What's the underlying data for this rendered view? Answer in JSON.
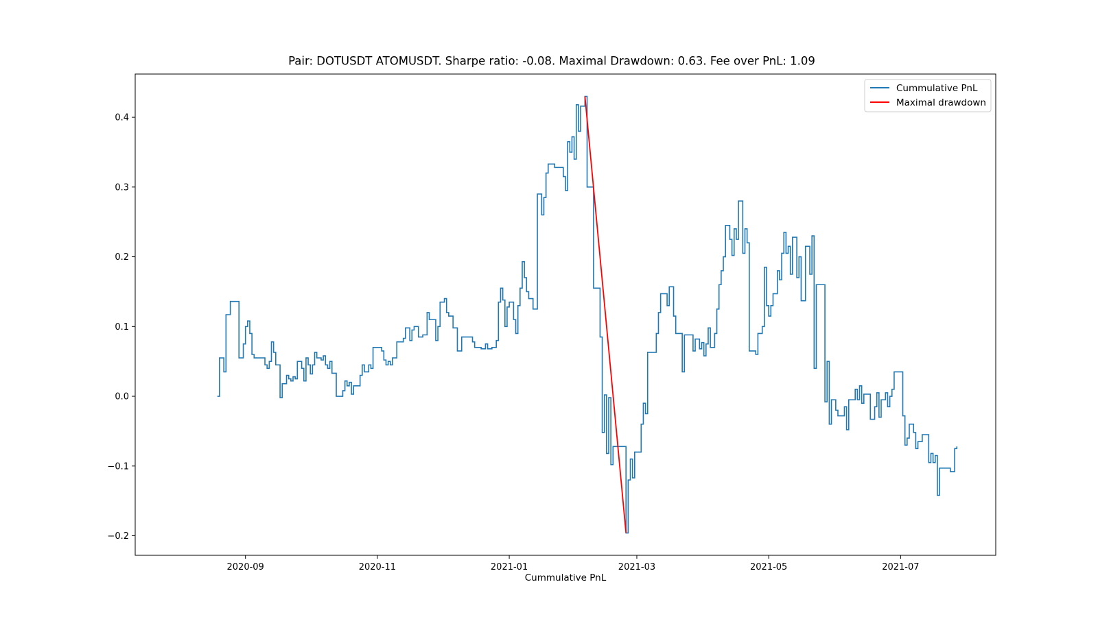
{
  "chart_data": {
    "type": "line",
    "title": "Pair: DOTUSDT ATOMUSDT. Sharpe ratio: -0.08. Maximal Drawdown: 0.63. Fee over PnL: 1.09",
    "xlabel": "Cummulative PnL",
    "ylabel": "",
    "xlim": [
      "2020-07-12",
      "2021-08-14"
    ],
    "ylim": [
      -0.228,
      0.462
    ],
    "x_ticks": [
      "2020-09",
      "2020-11",
      "2021-01",
      "2021-03",
      "2021-05",
      "2021-07"
    ],
    "y_ticks": [
      -0.2,
      -0.1,
      0.0,
      0.1,
      0.2,
      0.3,
      0.4
    ],
    "y_tick_labels": [
      "−0.2",
      "−0.1",
      "0.0",
      "0.1",
      "0.2",
      "0.3",
      "0.4"
    ],
    "grid": false,
    "legend_position": "top-right",
    "series": [
      {
        "name": "Cummulative PnL",
        "color": "#1f77b4",
        "step": true,
        "points": [
          [
            "2020-08-19",
            0.0
          ],
          [
            "2020-08-20",
            0.055
          ],
          [
            "2020-08-22",
            0.035
          ],
          [
            "2020-08-23",
            0.117
          ],
          [
            "2020-08-25",
            0.136
          ],
          [
            "2020-08-29",
            0.055
          ],
          [
            "2020-08-31",
            0.075
          ],
          [
            "2020-09-01",
            0.1
          ],
          [
            "2020-09-02",
            0.108
          ],
          [
            "2020-09-03",
            0.09
          ],
          [
            "2020-09-04",
            0.06
          ],
          [
            "2020-09-05",
            0.055
          ],
          [
            "2020-09-08",
            0.055
          ],
          [
            "2020-09-10",
            0.045
          ],
          [
            "2020-09-11",
            0.04
          ],
          [
            "2020-09-12",
            0.05
          ],
          [
            "2020-09-13",
            0.078
          ],
          [
            "2020-09-14",
            0.063
          ],
          [
            "2020-09-15",
            0.045
          ],
          [
            "2020-09-17",
            -0.002
          ],
          [
            "2020-09-18",
            0.018
          ],
          [
            "2020-09-20",
            0.03
          ],
          [
            "2020-09-21",
            0.025
          ],
          [
            "2020-09-22",
            0.022
          ],
          [
            "2020-09-23",
            0.028
          ],
          [
            "2020-09-24",
            0.025
          ],
          [
            "2020-09-25",
            0.05
          ],
          [
            "2020-09-27",
            0.04
          ],
          [
            "2020-09-28",
            0.022
          ],
          [
            "2020-09-29",
            0.055
          ],
          [
            "2020-09-30",
            0.045
          ],
          [
            "2020-10-01",
            0.032
          ],
          [
            "2020-10-02",
            0.045
          ],
          [
            "2020-10-03",
            0.063
          ],
          [
            "2020-10-04",
            0.055
          ],
          [
            "2020-10-06",
            0.052
          ],
          [
            "2020-10-07",
            0.058
          ],
          [
            "2020-10-08",
            0.045
          ],
          [
            "2020-10-09",
            0.04
          ],
          [
            "2020-10-10",
            0.05
          ],
          [
            "2020-10-11",
            0.033
          ],
          [
            "2020-10-13",
            0.0
          ],
          [
            "2020-10-16",
            0.008
          ],
          [
            "2020-10-17",
            0.022
          ],
          [
            "2020-10-18",
            0.015
          ],
          [
            "2020-10-19",
            0.02
          ],
          [
            "2020-10-20",
            0.003
          ],
          [
            "2020-10-21",
            0.015
          ],
          [
            "2020-10-24",
            0.03
          ],
          [
            "2020-10-25",
            0.045
          ],
          [
            "2020-10-26",
            0.035
          ],
          [
            "2020-10-27",
            0.035
          ],
          [
            "2020-10-28",
            0.045
          ],
          [
            "2020-10-29",
            0.04
          ],
          [
            "2020-10-30",
            0.07
          ],
          [
            "2020-11-03",
            0.065
          ],
          [
            "2020-11-04",
            0.052
          ],
          [
            "2020-11-05",
            0.045
          ],
          [
            "2020-11-06",
            0.05
          ],
          [
            "2020-11-07",
            0.045
          ],
          [
            "2020-11-08",
            0.055
          ],
          [
            "2020-11-10",
            0.078
          ],
          [
            "2020-11-13",
            0.083
          ],
          [
            "2020-11-14",
            0.098
          ],
          [
            "2020-11-16",
            0.08
          ],
          [
            "2020-11-17",
            0.095
          ],
          [
            "2020-11-18",
            0.1
          ],
          [
            "2020-11-20",
            0.085
          ],
          [
            "2020-11-22",
            0.088
          ],
          [
            "2020-11-24",
            0.12
          ],
          [
            "2020-11-25",
            0.11
          ],
          [
            "2020-11-28",
            0.08
          ],
          [
            "2020-11-29",
            0.1
          ],
          [
            "2020-11-30",
            0.135
          ],
          [
            "2020-12-02",
            0.14
          ],
          [
            "2020-12-03",
            0.12
          ],
          [
            "2020-12-04",
            0.115
          ],
          [
            "2020-12-06",
            0.098
          ],
          [
            "2020-12-08",
            0.065
          ],
          [
            "2020-12-10",
            0.085
          ],
          [
            "2020-12-15",
            0.078
          ],
          [
            "2020-12-16",
            0.07
          ],
          [
            "2020-12-19",
            0.068
          ],
          [
            "2020-12-21",
            0.075
          ],
          [
            "2020-12-22",
            0.068
          ],
          [
            "2020-12-24",
            0.07
          ],
          [
            "2020-12-26",
            0.08
          ],
          [
            "2020-12-27",
            0.135
          ],
          [
            "2020-12-28",
            0.155
          ],
          [
            "2020-12-29",
            0.138
          ],
          [
            "2020-12-30",
            0.1
          ],
          [
            "2020-12-31",
            0.128
          ],
          [
            "2021-01-01",
            0.135
          ],
          [
            "2021-01-03",
            0.11
          ],
          [
            "2021-01-04",
            0.09
          ],
          [
            "2021-01-05",
            0.13
          ],
          [
            "2021-01-06",
            0.155
          ],
          [
            "2021-01-07",
            0.193
          ],
          [
            "2021-01-08",
            0.17
          ],
          [
            "2021-01-09",
            0.15
          ],
          [
            "2021-01-10",
            0.14
          ],
          [
            "2021-01-12",
            0.125
          ],
          [
            "2021-01-14",
            0.29
          ],
          [
            "2021-01-16",
            0.26
          ],
          [
            "2021-01-17",
            0.285
          ],
          [
            "2021-01-18",
            0.32
          ],
          [
            "2021-01-19",
            0.333
          ],
          [
            "2021-01-22",
            0.328
          ],
          [
            "2021-01-26",
            0.315
          ],
          [
            "2021-01-27",
            0.295
          ],
          [
            "2021-01-28",
            0.365
          ],
          [
            "2021-01-29",
            0.35
          ],
          [
            "2021-01-30",
            0.372
          ],
          [
            "2021-01-31",
            0.34
          ],
          [
            "2021-02-01",
            0.418
          ],
          [
            "2021-02-02",
            0.38
          ],
          [
            "2021-02-03",
            0.416
          ],
          [
            "2021-02-05",
            0.43
          ],
          [
            "2021-02-06",
            0.3
          ],
          [
            "2021-02-09",
            0.155
          ],
          [
            "2021-02-12",
            0.085
          ],
          [
            "2021-02-13",
            -0.052
          ],
          [
            "2021-02-14",
            0.002
          ],
          [
            "2021-02-15",
            -0.082
          ],
          [
            "2021-02-16",
            -0.002
          ],
          [
            "2021-02-17",
            -0.098
          ],
          [
            "2021-02-18",
            -0.072
          ],
          [
            "2021-02-24",
            -0.196
          ],
          [
            "2021-02-25",
            -0.12
          ],
          [
            "2021-02-26",
            -0.09
          ],
          [
            "2021-02-27",
            -0.117
          ],
          [
            "2021-02-28",
            -0.08
          ],
          [
            "2021-03-03",
            -0.04
          ],
          [
            "2021-03-04",
            -0.01
          ],
          [
            "2021-03-05",
            -0.025
          ],
          [
            "2021-03-06",
            0.063
          ],
          [
            "2021-03-10",
            0.09
          ],
          [
            "2021-03-11",
            0.12
          ],
          [
            "2021-03-12",
            0.147
          ],
          [
            "2021-03-15",
            0.13
          ],
          [
            "2021-03-16",
            0.157
          ],
          [
            "2021-03-18",
            0.115
          ],
          [
            "2021-03-19",
            0.09
          ],
          [
            "2021-03-22",
            0.035
          ],
          [
            "2021-03-23",
            0.088
          ],
          [
            "2021-03-27",
            0.065
          ],
          [
            "2021-03-28",
            0.082
          ],
          [
            "2021-03-30",
            0.068
          ],
          [
            "2021-03-31",
            0.077
          ],
          [
            "2021-04-01",
            0.058
          ],
          [
            "2021-04-02",
            0.075
          ],
          [
            "2021-04-03",
            0.098
          ],
          [
            "2021-04-04",
            0.07
          ],
          [
            "2021-04-06",
            0.09
          ],
          [
            "2021-04-07",
            0.125
          ],
          [
            "2021-04-08",
            0.16
          ],
          [
            "2021-04-09",
            0.18
          ],
          [
            "2021-04-10",
            0.2
          ],
          [
            "2021-04-11",
            0.245
          ],
          [
            "2021-04-13",
            0.225
          ],
          [
            "2021-04-14",
            0.202
          ],
          [
            "2021-04-15",
            0.24
          ],
          [
            "2021-04-16",
            0.225
          ],
          [
            "2021-04-17",
            0.28
          ],
          [
            "2021-04-19",
            0.205
          ],
          [
            "2021-04-20",
            0.24
          ],
          [
            "2021-04-21",
            0.22
          ],
          [
            "2021-04-22",
            0.065
          ],
          [
            "2021-04-25",
            0.06
          ],
          [
            "2021-04-26",
            0.09
          ],
          [
            "2021-04-28",
            0.1
          ],
          [
            "2021-04-29",
            0.185
          ],
          [
            "2021-04-30",
            0.13
          ],
          [
            "2021-05-01",
            0.115
          ],
          [
            "2021-05-02",
            0.13
          ],
          [
            "2021-05-03",
            0.147
          ],
          [
            "2021-05-05",
            0.18
          ],
          [
            "2021-05-06",
            0.167
          ],
          [
            "2021-05-07",
            0.205
          ],
          [
            "2021-05-08",
            0.235
          ],
          [
            "2021-05-09",
            0.205
          ],
          [
            "2021-05-10",
            0.215
          ],
          [
            "2021-05-11",
            0.175
          ],
          [
            "2021-05-12",
            0.228
          ],
          [
            "2021-05-14",
            0.17
          ],
          [
            "2021-05-15",
            0.2
          ],
          [
            "2021-05-16",
            0.137
          ],
          [
            "2021-05-18",
            0.215
          ],
          [
            "2021-05-20",
            0.175
          ],
          [
            "2021-05-21",
            0.23
          ],
          [
            "2021-05-22",
            0.04
          ],
          [
            "2021-05-23",
            0.16
          ],
          [
            "2021-05-27",
            -0.008
          ],
          [
            "2021-05-28",
            0.05
          ],
          [
            "2021-05-29",
            -0.04
          ],
          [
            "2021-05-30",
            -0.005
          ],
          [
            "2021-06-01",
            -0.02
          ],
          [
            "2021-06-02",
            -0.028
          ],
          [
            "2021-06-05",
            -0.015
          ],
          [
            "2021-06-06",
            -0.048
          ],
          [
            "2021-06-07",
            -0.005
          ],
          [
            "2021-06-10",
            0.01
          ],
          [
            "2021-06-11",
            -0.005
          ],
          [
            "2021-06-12",
            0.015
          ],
          [
            "2021-06-13",
            -0.01
          ],
          [
            "2021-06-14",
            0.003
          ],
          [
            "2021-06-17",
            -0.033
          ],
          [
            "2021-06-19",
            -0.015
          ],
          [
            "2021-06-20",
            0.005
          ],
          [
            "2021-06-21",
            -0.03
          ],
          [
            "2021-06-22",
            -0.005
          ],
          [
            "2021-06-24",
            0.005
          ],
          [
            "2021-06-25",
            -0.015
          ],
          [
            "2021-06-26",
            0.0
          ],
          [
            "2021-06-27",
            0.01
          ],
          [
            "2021-06-28",
            0.035
          ],
          [
            "2021-07-02",
            -0.028
          ],
          [
            "2021-07-03",
            -0.07
          ],
          [
            "2021-07-04",
            -0.06
          ],
          [
            "2021-07-05",
            -0.04
          ],
          [
            "2021-07-07",
            -0.052
          ],
          [
            "2021-07-08",
            -0.075
          ],
          [
            "2021-07-09",
            -0.065
          ],
          [
            "2021-07-11",
            -0.055
          ],
          [
            "2021-07-14",
            -0.095
          ],
          [
            "2021-07-15",
            -0.082
          ],
          [
            "2021-07-16",
            -0.095
          ],
          [
            "2021-07-17",
            -0.085
          ],
          [
            "2021-07-18",
            -0.142
          ],
          [
            "2021-07-19",
            -0.103
          ],
          [
            "2021-07-24",
            -0.108
          ],
          [
            "2021-07-26",
            -0.075
          ],
          [
            "2021-07-27",
            -0.072
          ]
        ]
      },
      {
        "name": "Maximal drawdown",
        "color": "#ff0000",
        "step": false,
        "points": [
          [
            "2021-02-05",
            0.43
          ],
          [
            "2021-02-24",
            -0.196
          ]
        ]
      }
    ]
  }
}
